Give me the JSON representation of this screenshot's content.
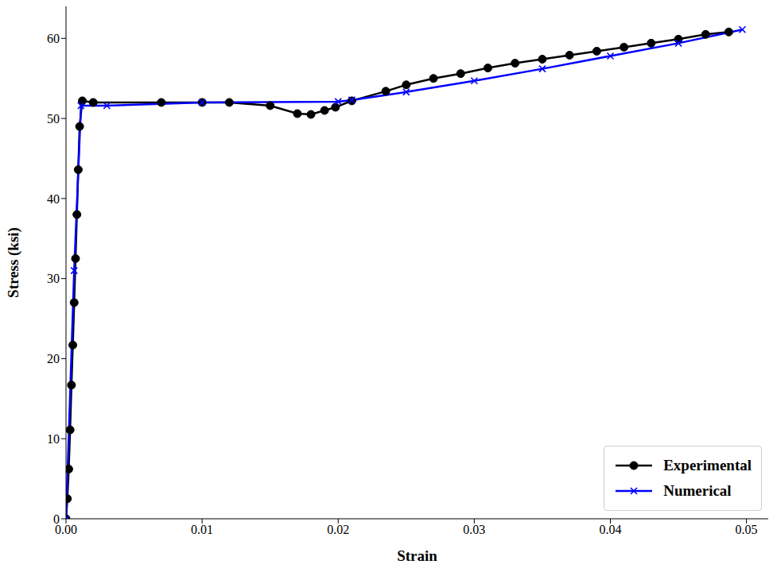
{
  "chart_data": {
    "type": "line",
    "xlabel": "Strain",
    "ylabel": "Stress (ksi)",
    "xlim": [
      0,
      0.0516
    ],
    "ylim": [
      0,
      64
    ],
    "xticks": [
      {
        "value": 0,
        "label": "0.00"
      },
      0.01,
      0.02,
      0.03,
      0.04,
      0.05
    ],
    "yticks": [
      0,
      10,
      20,
      30,
      40,
      50,
      60
    ],
    "grid": false,
    "legend": "lower right",
    "series": [
      {
        "name": "Experimental",
        "color": "#000000",
        "marker": "circle",
        "line_style": "solid",
        "x": [
          0,
          0.0001,
          0.0002,
          0.0003,
          0.0004,
          0.0005,
          0.0006,
          0.0007,
          0.0008,
          0.0009,
          0.001,
          0.0012,
          0.002,
          0.007,
          0.01,
          0.012,
          0.015,
          0.017,
          0.018,
          0.019,
          0.0198,
          0.021,
          0.0235,
          0.025,
          0.027,
          0.029,
          0.031,
          0.033,
          0.035,
          0.037,
          0.039,
          0.041,
          0.043,
          0.045,
          0.047,
          0.0487
        ],
        "values": [
          0,
          2.5,
          6.2,
          11.1,
          16.7,
          21.7,
          27,
          32.5,
          38,
          43.6,
          49,
          52.2,
          52,
          52,
          52,
          52,
          51.6,
          50.6,
          50.5,
          51,
          51.4,
          52.2,
          53.4,
          54.2,
          55,
          55.6,
          56.3,
          56.9,
          57.4,
          57.9,
          58.4,
          58.9,
          59.4,
          59.9,
          60.5,
          60.8
        ]
      },
      {
        "name": "Numerical",
        "color": "#0000ff",
        "marker": "x",
        "line_style": "solid",
        "x": [
          0,
          0.0006,
          0.0011,
          0.003,
          0.01,
          0.02,
          0.021,
          0.025,
          0.03,
          0.035,
          0.04,
          0.045,
          0.0497
        ],
        "values": [
          0,
          31,
          51.6,
          51.6,
          52,
          52.1,
          52.3,
          53.3,
          54.7,
          56.2,
          57.8,
          59.4,
          61.1
        ]
      }
    ]
  }
}
